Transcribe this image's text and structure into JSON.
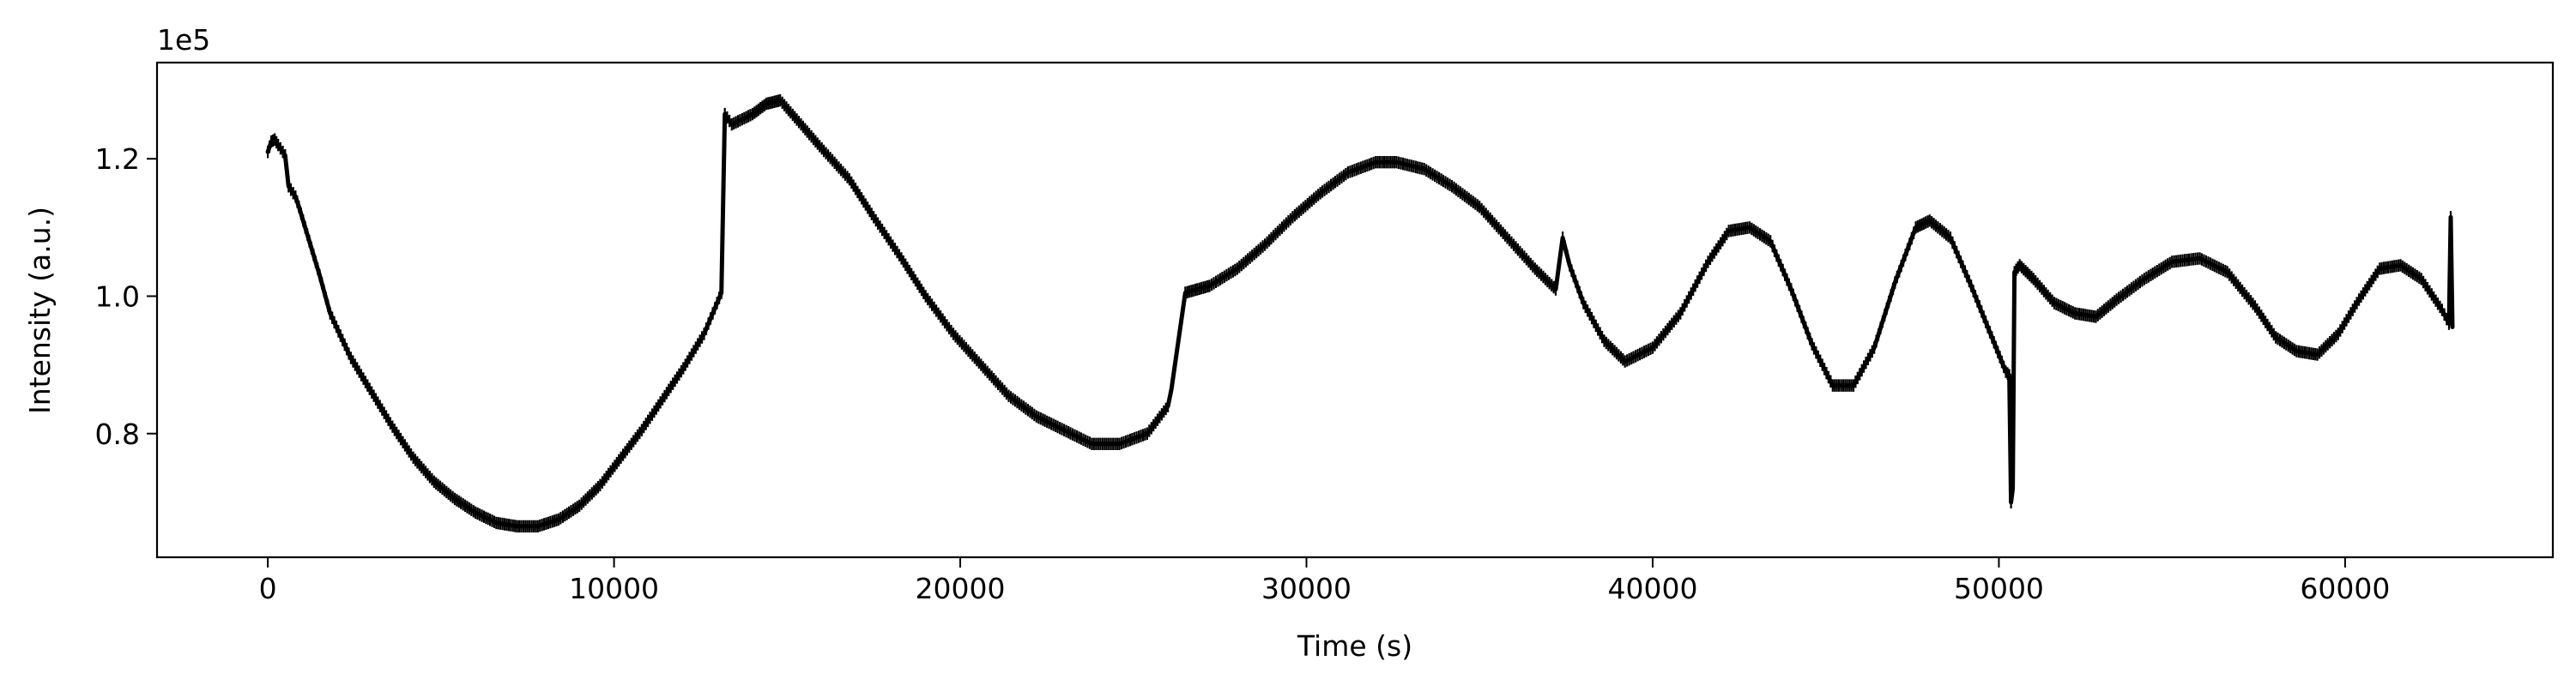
{
  "chart_data": {
    "type": "line",
    "title": "",
    "xlabel": "Time (s)",
    "ylabel": "Intensity (a.u.)",
    "y_offset_label": "1e5",
    "y_scale_factor": 100000,
    "xlim": [
      -3200,
      66000
    ],
    "ylim": [
      62000,
      134000
    ],
    "x_ticks": [
      0,
      10000,
      20000,
      30000,
      40000,
      50000,
      60000
    ],
    "x_tick_labels": [
      "0",
      "10000",
      "20000",
      "30000",
      "40000",
      "50000",
      "60000"
    ],
    "y_ticks": [
      80000,
      100000,
      120000
    ],
    "y_tick_labels": [
      "0.8",
      "1.0",
      "1.2"
    ],
    "grid": false,
    "line_color": "#000000",
    "series": [
      {
        "x": [
          0,
          100,
          200,
          300,
          500,
          600,
          800,
          900,
          1200,
          1500,
          1800,
          2400,
          3000,
          3600,
          4200,
          4800,
          5400,
          6000,
          6600,
          7200,
          7800,
          8400,
          9000,
          9600,
          10200,
          10800,
          11400,
          12000,
          12600,
          13100,
          13200,
          13400,
          14000,
          14400,
          14800,
          15400,
          16000,
          16800,
          17500,
          18300,
          19000,
          19800,
          20600,
          21400,
          22200,
          23000,
          23800,
          24600,
          25400,
          26000,
          26100,
          26500,
          27200,
          28000,
          28800,
          29600,
          30400,
          31200,
          32000,
          32600,
          33400,
          34200,
          35000,
          35800,
          36600,
          37200,
          37400,
          37600,
          38000,
          38600,
          39200,
          40000,
          40800,
          41600,
          42200,
          42800,
          43400,
          44000,
          44600,
          45200,
          45800,
          46400,
          47000,
          47600,
          48000,
          48600,
          49200,
          49800,
          50200,
          50300,
          50350,
          50400,
          50450,
          50600,
          51000,
          51600,
          52200,
          52800,
          53400,
          54200,
          55000,
          55800,
          56600,
          57400,
          58000,
          58600,
          59200,
          59800,
          60400,
          61000,
          61600,
          62200,
          62800,
          63000,
          63050,
          63100
        ],
        "y": [
          121000,
          122500,
          122800,
          122000,
          120500,
          116000,
          114500,
          113000,
          108000,
          103000,
          97500,
          91000,
          86000,
          81000,
          76500,
          73000,
          70500,
          68500,
          67000,
          66500,
          66500,
          67500,
          69500,
          72500,
          76500,
          80500,
          85000,
          89500,
          94500,
          100500,
          126500,
          125000,
          126500,
          128000,
          128500,
          125000,
          121500,
          117000,
          111500,
          105500,
          100000,
          94500,
          90000,
          85500,
          82500,
          80500,
          78500,
          78500,
          80000,
          84000,
          86500,
          100500,
          101500,
          104000,
          107500,
          111500,
          115000,
          118000,
          119500,
          119500,
          118500,
          116000,
          113000,
          108500,
          104000,
          101000,
          108500,
          104500,
          99000,
          93500,
          90500,
          92500,
          97500,
          105000,
          109500,
          110000,
          108000,
          101000,
          93000,
          87000,
          87000,
          92500,
          102000,
          110000,
          111000,
          108500,
          101500,
          94000,
          89000,
          88500,
          70000,
          72000,
          103500,
          104500,
          102500,
          99000,
          97500,
          97000,
          99500,
          102500,
          105000,
          105500,
          103500,
          98500,
          94000,
          92000,
          91500,
          94500,
          99500,
          104000,
          104500,
          102500,
          98000,
          96000,
          111500,
          95500
        ]
      }
    ]
  }
}
